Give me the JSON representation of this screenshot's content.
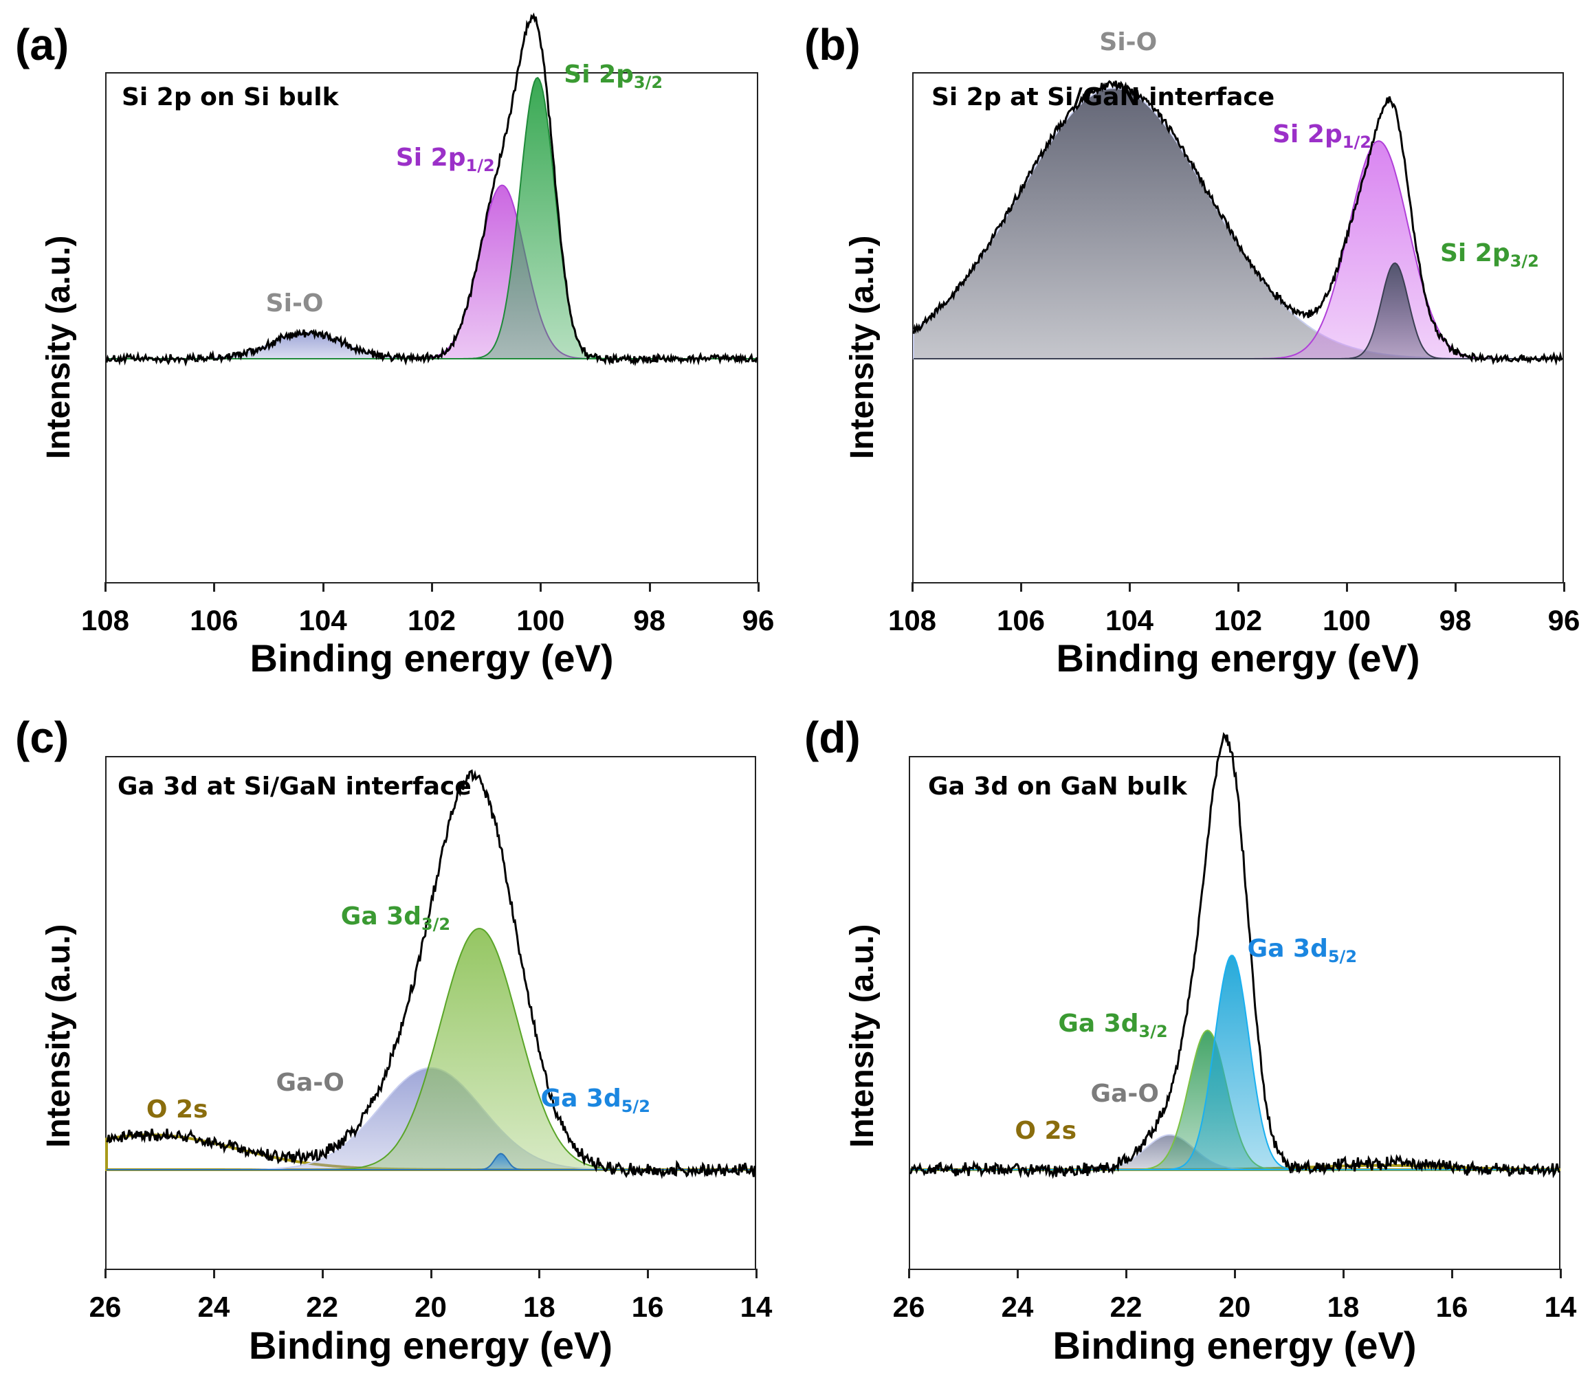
{
  "chart_data": [
    {
      "id": "a",
      "panel_label": "(a)",
      "type": "line",
      "title": "Si 2p on Si bulk",
      "xlabel": "Binding energy (eV)",
      "ylabel": "Intensity (a.u.)",
      "xlim": [
        108,
        96
      ],
      "xticks": [
        "108",
        "106",
        "104",
        "102",
        "100",
        "98",
        "96"
      ],
      "baseline": 0.02,
      "raw_peaks": [
        {
          "center": 104.3,
          "height": 0.075,
          "sigma": 0.65
        },
        {
          "center": 100.7,
          "height": 0.5,
          "sigma": 0.42
        },
        {
          "center": 100.05,
          "height": 0.81,
          "sigma": 0.32
        }
      ],
      "components": [
        {
          "name": "Si-O",
          "sub": "",
          "center": 104.3,
          "height": 0.075,
          "sigma": 0.65,
          "color": "#9aa2d6",
          "line": "#b9c0ea",
          "label_color": "#8c8c8c",
          "label_at": [
            104.3,
            0.14
          ]
        },
        {
          "name": "Si 2p",
          "sub": "1/2",
          "center": 100.7,
          "height": 0.5,
          "sigma": 0.42,
          "color": "#c85fe0",
          "line": "#b040d8",
          "label_color": "#9b30c8",
          "label_at": [
            101.9,
            0.56
          ]
        },
        {
          "name": "Si 2p",
          "sub": "3/2",
          "center": 100.05,
          "height": 0.81,
          "sigma": 0.32,
          "color": "#2ea44a",
          "line": "#1f8a39",
          "label_color": "#3a9a32",
          "label_at": [
            98.8,
            0.8
          ]
        }
      ]
    },
    {
      "id": "b",
      "panel_label": "(b)",
      "type": "line",
      "title": "Si 2p at Si/GaN interface",
      "xlabel": "Binding energy (eV)",
      "ylabel": "Intensity (a.u.)",
      "xlim": [
        108,
        96
      ],
      "xticks": [
        "108",
        "106",
        "104",
        "102",
        "100",
        "98",
        "96"
      ],
      "baseline": 0.02,
      "raw_peaks": [
        {
          "center": 104.3,
          "height": 0.83,
          "sigma": 1.75
        },
        {
          "center": 99.4,
          "height": 0.58,
          "sigma": 0.55
        },
        {
          "center": 99.1,
          "height": 0.25,
          "sigma": 0.25
        }
      ],
      "components": [
        {
          "name": "Si-O",
          "sub": "",
          "center": 104.3,
          "height": 0.82,
          "sigma": 1.75,
          "color": "#5a5d6e",
          "line": "#c9cff0",
          "label_color": "#8c8c8c",
          "label_at": [
            103.8,
            0.94
          ]
        },
        {
          "name": "Si 2p",
          "sub": "1/2",
          "center": 99.4,
          "height": 0.66,
          "sigma": 0.55,
          "color": "#d77ef0",
          "line": "#b040d8",
          "label_color": "#9b30c8",
          "label_at": [
            100.6,
            0.66
          ]
        },
        {
          "name": "Si 2p",
          "sub": "3/2",
          "center": 99.1,
          "height": 0.29,
          "sigma": 0.25,
          "color": "#4a5066",
          "line": "#3a3f52",
          "label_color": "#3a9a32",
          "label_at": [
            97.5,
            0.3
          ]
        }
      ]
    },
    {
      "id": "c",
      "panel_label": "(c)",
      "type": "line",
      "title": "Ga 3d at Si/GaN interface",
      "xlabel": "Binding energy (eV)",
      "ylabel": "Intensity (a.u.)",
      "xlim": [
        26,
        14
      ],
      "xticks": [
        "26",
        "24",
        "22",
        "20",
        "18",
        "16",
        "14"
      ],
      "baseline": 0.02,
      "raw_peaks": [
        {
          "center": 25.2,
          "height": 0.065,
          "sigma": 1.6
        },
        {
          "center": 20.0,
          "height": 0.2,
          "sigma": 0.95
        },
        {
          "center": 19.1,
          "height": 0.6,
          "sigma": 0.75
        }
      ],
      "components": [
        {
          "name": "O 2s",
          "sub": "",
          "center": 25.2,
          "height": 0.065,
          "sigma": 1.6,
          "color": "#ffffff",
          "line": "#a89a1a",
          "fill": false,
          "label_color": "#8a6d0d",
          "label_at": [
            24.5,
            0.1
          ]
        },
        {
          "name": "Ga-O",
          "sub": "",
          "center": 20.0,
          "height": 0.19,
          "sigma": 0.95,
          "color": "#9aa2d6",
          "line": "#c9cff0",
          "label_color": "#7c7c7c",
          "label_at": [
            22.1,
            0.15
          ]
        },
        {
          "name": "Ga 3d",
          "sub": "3/2",
          "center": 19.1,
          "height": 0.45,
          "sigma": 0.72,
          "color": "#8fc35a",
          "line": "#5aa528",
          "label_color": "#3a9a32",
          "label_at": [
            20.9,
            0.46
          ]
        },
        {
          "name": "Ga 3d",
          "sub": "5/2",
          "center": 18.7,
          "height": 0.03,
          "sigma": 0.12,
          "color": "#3a8fd6",
          "line": "#2c76b8",
          "label_color": "#1a86e0",
          "label_at": [
            17.2,
            0.12
          ]
        }
      ]
    },
    {
      "id": "d",
      "panel_label": "(d)",
      "type": "line",
      "title": "Ga 3d on GaN bulk",
      "xlabel": "Binding energy (eV)",
      "ylabel": "Intensity (a.u.)",
      "xlim": [
        26,
        14
      ],
      "xticks": [
        "26",
        "24",
        "22",
        "20",
        "18",
        "16",
        "14"
      ],
      "baseline": 0.02,
      "raw_peaks": [
        {
          "center": 21.2,
          "height": 0.07,
          "sigma": 0.5
        },
        {
          "center": 20.45,
          "height": 0.35,
          "sigma": 0.42
        },
        {
          "center": 20.05,
          "height": 0.55,
          "sigma": 0.35
        },
        {
          "center": 17.2,
          "height": 0.012,
          "sigma": 0.9
        }
      ],
      "components": [
        {
          "name": "O 2s",
          "sub": "",
          "center": 17.3,
          "height": 0.008,
          "sigma": 1.3,
          "color": "#ffffff",
          "line": "#a89a1a",
          "fill": false,
          "label_color": "#8a6d0d",
          "label_at": [
            23.3,
            0.06
          ]
        },
        {
          "name": "Ga-O",
          "sub": "",
          "center": 21.2,
          "height": 0.065,
          "sigma": 0.45,
          "color": "#8a8fa8",
          "line": "#c9cff0",
          "label_color": "#7c7c7c",
          "label_at": [
            21.9,
            0.13
          ]
        },
        {
          "name": "Ga 3d",
          "sub": "3/2",
          "center": 20.5,
          "height": 0.26,
          "sigma": 0.35,
          "color": "#3aa060",
          "line": "#7bc142",
          "label_color": "#3a9a32",
          "label_at": [
            22.5,
            0.26
          ]
        },
        {
          "name": "Ga 3d",
          "sub": "5/2",
          "center": 20.05,
          "height": 0.4,
          "sigma": 0.32,
          "color": "#1aa5d8",
          "line": "#1ab0f0",
          "label_color": "#1a86e0",
          "label_at": [
            19.0,
            0.4
          ]
        }
      ]
    }
  ]
}
